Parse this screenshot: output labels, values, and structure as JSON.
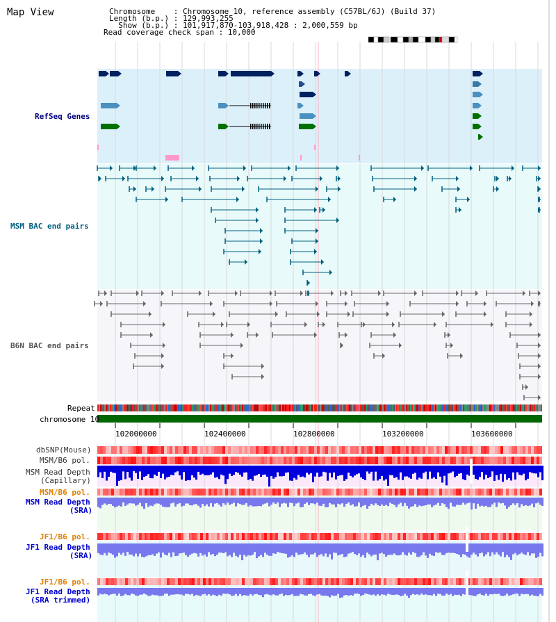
{
  "title": "Map View",
  "header": {
    "line1": "Chromosome    : Chromosome 10, reference assembly (C57BL/6J) (Build 37)",
    "line2": "Length (b.p.) : 129,993,255",
    "line3": "  Show (b.p.) : 101,917,870-103,918,428 : 2,000,559 bp",
    "line4": "Read coverage check span : 10,000"
  },
  "tracks": {
    "refseq": "RefSeq Genes",
    "msm_bac": "MSM BAC end pairs",
    "b6n_bac": "B6N BAC end pairs",
    "repeat": "Repeat",
    "chromosome": "chromosome 10",
    "dbsnp": "dbSNP(Mouse)",
    "msm_b6_pol_1": "MSM/B6 pol.",
    "msm_depth_cap_1": "MSM Read Depth",
    "msm_depth_cap_2": "(Capillary)",
    "msm_b6_pol_2": "MSM/B6 pol.",
    "msm_depth_sra_1": "MSM Read Depth",
    "msm_depth_sra_2": "(SRA)",
    "jf1_pol_1": "JF1/B6 pol.",
    "jf1_depth_sra_1": "JF1 Read Depth",
    "jf1_depth_sra_2": "(SRA)",
    "jf1_pol_2": "JF1/B6 pol.",
    "jf1_depth_trim_1": "JF1 Read Depth",
    "jf1_depth_trim_2": "(SRA trimmed)"
  },
  "axis_ticks": [
    "102000000",
    "102400000",
    "102800000",
    "103200000",
    "103600000"
  ],
  "colors": {
    "refseq_bg": "#dcf0fa",
    "msm_bg": "#e8fafa",
    "b6n_bg": "#f5f5fa",
    "navy": "#002060",
    "teal": "#006080",
    "green": "#007000",
    "pink": "#ff99cc",
    "chromosome": "#006600",
    "depth_blue": "#0000dd",
    "depth_light": "#7777ee",
    "label_navy": "#000080",
    "label_teal": "#006080",
    "label_orange": "#e08000",
    "label_blue": "#0000cc"
  }
}
